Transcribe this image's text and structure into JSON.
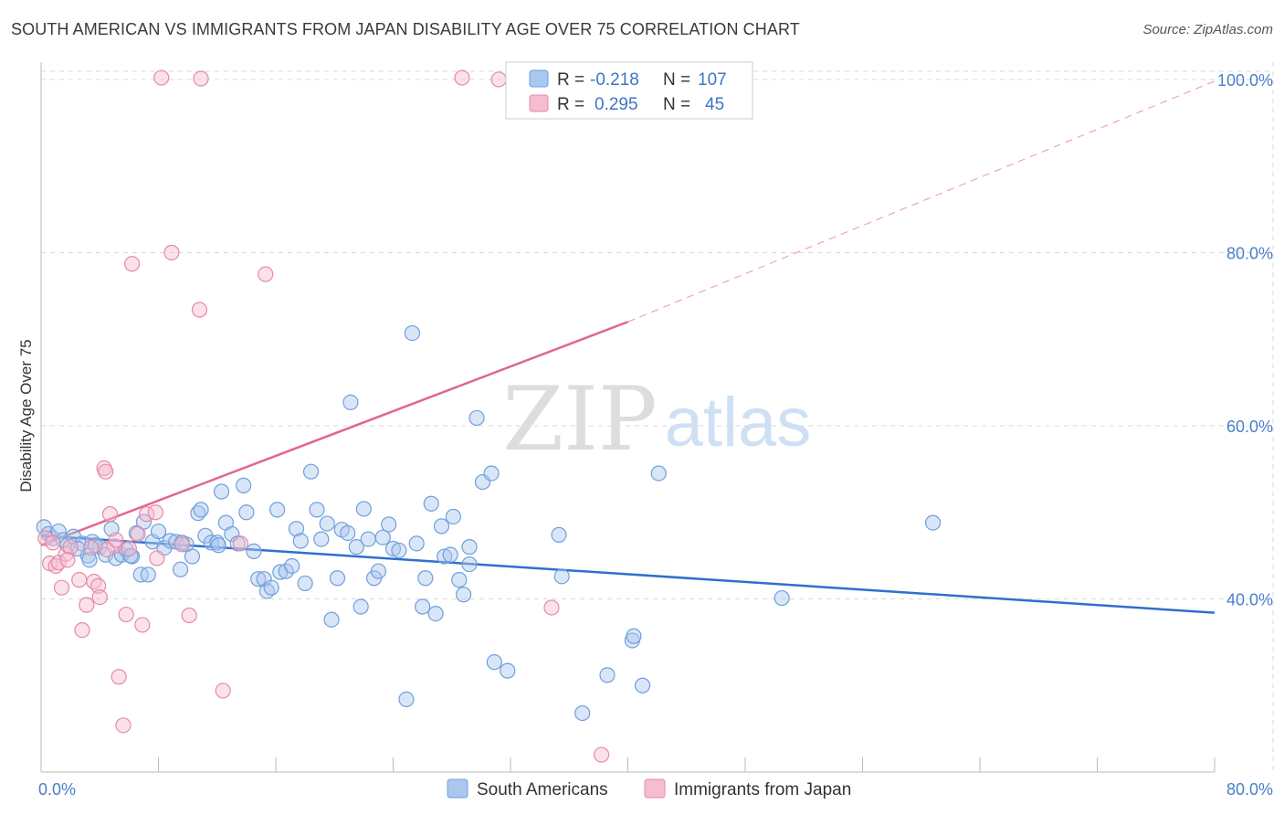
{
  "title": "SOUTH AMERICAN VS IMMIGRANTS FROM JAPAN DISABILITY AGE OVER 75 CORRELATION CHART",
  "source": "Source: ZipAtlas.com",
  "watermark": {
    "zip": "ZIP",
    "atlas": "atlas"
  },
  "colors": {
    "blue_fill": "#aac8ee",
    "blue_stroke": "#6f9fdc",
    "blue_line": "#2f6fcf",
    "pink_fill": "#f6bcd0",
    "pink_stroke": "#e58aa8",
    "pink_line": "#e0668e",
    "axis_label": "#4a7fc8",
    "grid": "#d8d8d8"
  },
  "stats": {
    "r_label": "R =",
    "n_label": "N =",
    "rows": [
      {
        "series": "blue",
        "r": "-0.218",
        "n": "107"
      },
      {
        "series": "pink",
        "r": "0.295",
        "n": "45"
      }
    ]
  },
  "legend": [
    "South Americans",
    "Immigrants from Japan"
  ],
  "chart_data": {
    "type": "scatter",
    "title": "SOUTH AMERICAN VS IMMIGRANTS FROM JAPAN DISABILITY AGE OVER 75 CORRELATION CHART",
    "xlabel": "",
    "ylabel": "Disability Age Over 75",
    "xlim": [
      0,
      80
    ],
    "ylim": [
      20,
      102
    ],
    "x_tick_labels": [
      "0.0%",
      "80.0%"
    ],
    "y_ticks": [
      40,
      60,
      80,
      100
    ],
    "y_tick_labels": [
      "40.0%",
      "60.0%",
      "80.0%",
      "100.0%"
    ],
    "grid": true,
    "legend_position": "bottom",
    "series": [
      {
        "name": "South Americans",
        "color": "#6f9fdc",
        "points": [
          [
            0.2,
            48.3
          ],
          [
            0.5,
            47.5
          ],
          [
            0.8,
            47.0
          ],
          [
            1.2,
            47.8
          ],
          [
            1.5,
            46.8
          ],
          [
            1.8,
            46.2
          ],
          [
            2.2,
            47.2
          ],
          [
            2.8,
            46.4
          ],
          [
            3.2,
            45.0
          ],
          [
            3.3,
            44.5
          ],
          [
            3.5,
            46.6
          ],
          [
            4.0,
            46.0
          ],
          [
            4.4,
            45.1
          ],
          [
            4.8,
            48.1
          ],
          [
            5.1,
            44.7
          ],
          [
            5.5,
            45.1
          ],
          [
            5.8,
            45.7
          ],
          [
            6.2,
            44.9
          ],
          [
            6.5,
            47.6
          ],
          [
            6.8,
            42.8
          ],
          [
            7.0,
            48.9
          ],
          [
            7.3,
            42.8
          ],
          [
            7.6,
            46.6
          ],
          [
            8.0,
            47.8
          ],
          [
            8.4,
            45.9
          ],
          [
            8.8,
            46.7
          ],
          [
            9.2,
            46.6
          ],
          [
            9.5,
            43.4
          ],
          [
            9.9,
            46.3
          ],
          [
            10.3,
            44.9
          ],
          [
            10.7,
            49.9
          ],
          [
            10.9,
            50.3
          ],
          [
            11.2,
            47.3
          ],
          [
            11.6,
            46.5
          ],
          [
            12.0,
            46.5
          ],
          [
            12.3,
            52.4
          ],
          [
            12.6,
            48.8
          ],
          [
            13.0,
            47.5
          ],
          [
            13.4,
            46.4
          ],
          [
            13.8,
            53.1
          ],
          [
            14.0,
            50.0
          ],
          [
            14.5,
            45.5
          ],
          [
            14.8,
            42.3
          ],
          [
            15.2,
            42.3
          ],
          [
            15.4,
            40.9
          ],
          [
            15.7,
            41.3
          ],
          [
            16.1,
            50.3
          ],
          [
            16.3,
            43.1
          ],
          [
            16.7,
            43.2
          ],
          [
            17.1,
            43.8
          ],
          [
            17.4,
            48.1
          ],
          [
            17.7,
            46.7
          ],
          [
            18.0,
            41.8
          ],
          [
            18.4,
            54.7
          ],
          [
            18.8,
            50.3
          ],
          [
            19.1,
            46.9
          ],
          [
            19.5,
            48.7
          ],
          [
            19.8,
            37.6
          ],
          [
            20.2,
            42.4
          ],
          [
            20.5,
            48.0
          ],
          [
            20.9,
            47.6
          ],
          [
            21.1,
            62.7
          ],
          [
            21.5,
            46.0
          ],
          [
            21.8,
            39.1
          ],
          [
            22.0,
            50.4
          ],
          [
            22.3,
            46.9
          ],
          [
            22.7,
            42.4
          ],
          [
            23.0,
            43.2
          ],
          [
            23.3,
            47.1
          ],
          [
            23.7,
            48.6
          ],
          [
            24.0,
            45.8
          ],
          [
            24.4,
            45.6
          ],
          [
            24.9,
            28.4
          ],
          [
            25.3,
            70.7
          ],
          [
            25.6,
            46.4
          ],
          [
            26.0,
            39.1
          ],
          [
            26.2,
            42.4
          ],
          [
            26.6,
            51.0
          ],
          [
            26.9,
            38.3
          ],
          [
            27.3,
            48.4
          ],
          [
            27.5,
            44.9
          ],
          [
            27.9,
            45.1
          ],
          [
            28.1,
            49.5
          ],
          [
            28.5,
            42.2
          ],
          [
            28.8,
            40.5
          ],
          [
            29.2,
            44.0
          ],
          [
            29.2,
            46.0
          ],
          [
            29.7,
            60.9
          ],
          [
            30.1,
            53.5
          ],
          [
            30.7,
            54.5
          ],
          [
            30.9,
            32.7
          ],
          [
            31.8,
            31.7
          ],
          [
            35.3,
            47.4
          ],
          [
            35.5,
            42.6
          ],
          [
            36.9,
            26.8
          ],
          [
            38.6,
            31.2
          ],
          [
            40.3,
            35.2
          ],
          [
            40.4,
            35.7
          ],
          [
            41.0,
            30.0
          ],
          [
            42.1,
            54.5
          ],
          [
            60.8,
            48.8
          ],
          [
            50.5,
            40.1
          ],
          [
            3.7,
            46.2
          ],
          [
            2.5,
            45.8
          ],
          [
            9.6,
            46.5
          ],
          [
            12.1,
            46.2
          ],
          [
            6.1,
            45.0
          ]
        ]
      },
      {
        "name": "Immigrants from Japan",
        "color": "#e58aa8",
        "points": [
          [
            0.3,
            47.0
          ],
          [
            0.6,
            44.1
          ],
          [
            0.8,
            46.5
          ],
          [
            1.0,
            43.8
          ],
          [
            1.2,
            44.2
          ],
          [
            1.4,
            41.3
          ],
          [
            1.7,
            45.2
          ],
          [
            2.0,
            46.0
          ],
          [
            2.6,
            42.2
          ],
          [
            2.8,
            36.4
          ],
          [
            3.1,
            39.3
          ],
          [
            3.4,
            45.9
          ],
          [
            3.6,
            42.0
          ],
          [
            3.9,
            41.5
          ],
          [
            4.0,
            40.2
          ],
          [
            4.3,
            55.1
          ],
          [
            4.4,
            54.7
          ],
          [
            4.7,
            49.8
          ],
          [
            5.0,
            46.1
          ],
          [
            5.3,
            31.0
          ],
          [
            5.6,
            25.4
          ],
          [
            5.8,
            38.2
          ],
          [
            6.0,
            45.8
          ],
          [
            6.2,
            78.7
          ],
          [
            6.6,
            47.5
          ],
          [
            6.9,
            37.0
          ],
          [
            7.2,
            49.8
          ],
          [
            7.8,
            50.0
          ],
          [
            7.9,
            44.7
          ],
          [
            8.2,
            100.2
          ],
          [
            8.9,
            80.0
          ],
          [
            9.6,
            46.3
          ],
          [
            10.1,
            38.1
          ],
          [
            10.8,
            73.4
          ],
          [
            10.9,
            100.1
          ],
          [
            12.4,
            29.4
          ],
          [
            13.6,
            46.4
          ],
          [
            15.3,
            77.5
          ],
          [
            28.7,
            100.2
          ],
          [
            31.2,
            100.0
          ],
          [
            34.8,
            39.0
          ],
          [
            38.2,
            22.0
          ],
          [
            4.5,
            45.7
          ],
          [
            1.8,
            44.5
          ],
          [
            5.1,
            46.8
          ]
        ]
      }
    ],
    "trend_lines": [
      {
        "series": "South Americans",
        "from": [
          0,
          47.3
        ],
        "to": [
          80,
          38.4
        ],
        "style": "solid"
      },
      {
        "series": "Immigrants from Japan",
        "from": [
          0,
          46.2
        ],
        "to": [
          40,
          72.0
        ],
        "style": "solid"
      },
      {
        "series": "Immigrants from Japan",
        "from": [
          40,
          72.0
        ],
        "to": [
          80,
          99.8
        ],
        "style": "dashed"
      }
    ]
  }
}
